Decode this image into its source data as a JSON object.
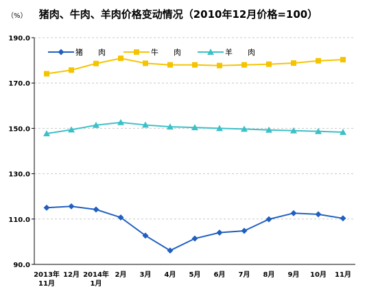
{
  "chart_data": {
    "type": "line",
    "title": "猪肉、牛肉、羊肉价格变动情况（2010年12月价格=100）",
    "unit_label": "（%）",
    "ylim": [
      90,
      190
    ],
    "yticks": [
      90.0,
      110.0,
      130.0,
      150.0,
      170.0,
      190.0
    ],
    "ytick_labels": [
      "90.0",
      "110.0",
      "130.0",
      "150.0",
      "170.0",
      "190.0"
    ],
    "categories": [
      [
        "2013年",
        "11月"
      ],
      [
        "12月"
      ],
      [
        "2014年",
        "1月"
      ],
      [
        "2月"
      ],
      [
        "3月"
      ],
      [
        "4月"
      ],
      [
        "5月"
      ],
      [
        "6月"
      ],
      [
        "7月"
      ],
      [
        "8月"
      ],
      [
        "9月"
      ],
      [
        "10月"
      ],
      [
        "11月"
      ]
    ],
    "legend_position": "top-left",
    "series": [
      {
        "name": "猪　　肉",
        "color": "#1f5fc0",
        "marker": "diamond",
        "values": [
          115.0,
          115.6,
          114.2,
          110.7,
          102.7,
          96.1,
          101.4,
          104.0,
          104.8,
          109.9,
          112.6,
          112.1,
          110.3
        ]
      },
      {
        "name": "牛　　肉",
        "color": "#f5c400",
        "marker": "square",
        "values": [
          174.1,
          175.7,
          178.6,
          180.9,
          178.7,
          178.0,
          178.0,
          177.7,
          178.0,
          178.3,
          178.8,
          179.8,
          180.3
        ]
      },
      {
        "name": "羊　　肉",
        "color": "#3cc0c8",
        "marker": "triangle",
        "values": [
          147.7,
          149.4,
          151.4,
          152.6,
          151.5,
          150.7,
          150.4,
          150.0,
          149.7,
          149.3,
          149.0,
          148.7,
          148.3
        ]
      }
    ]
  }
}
